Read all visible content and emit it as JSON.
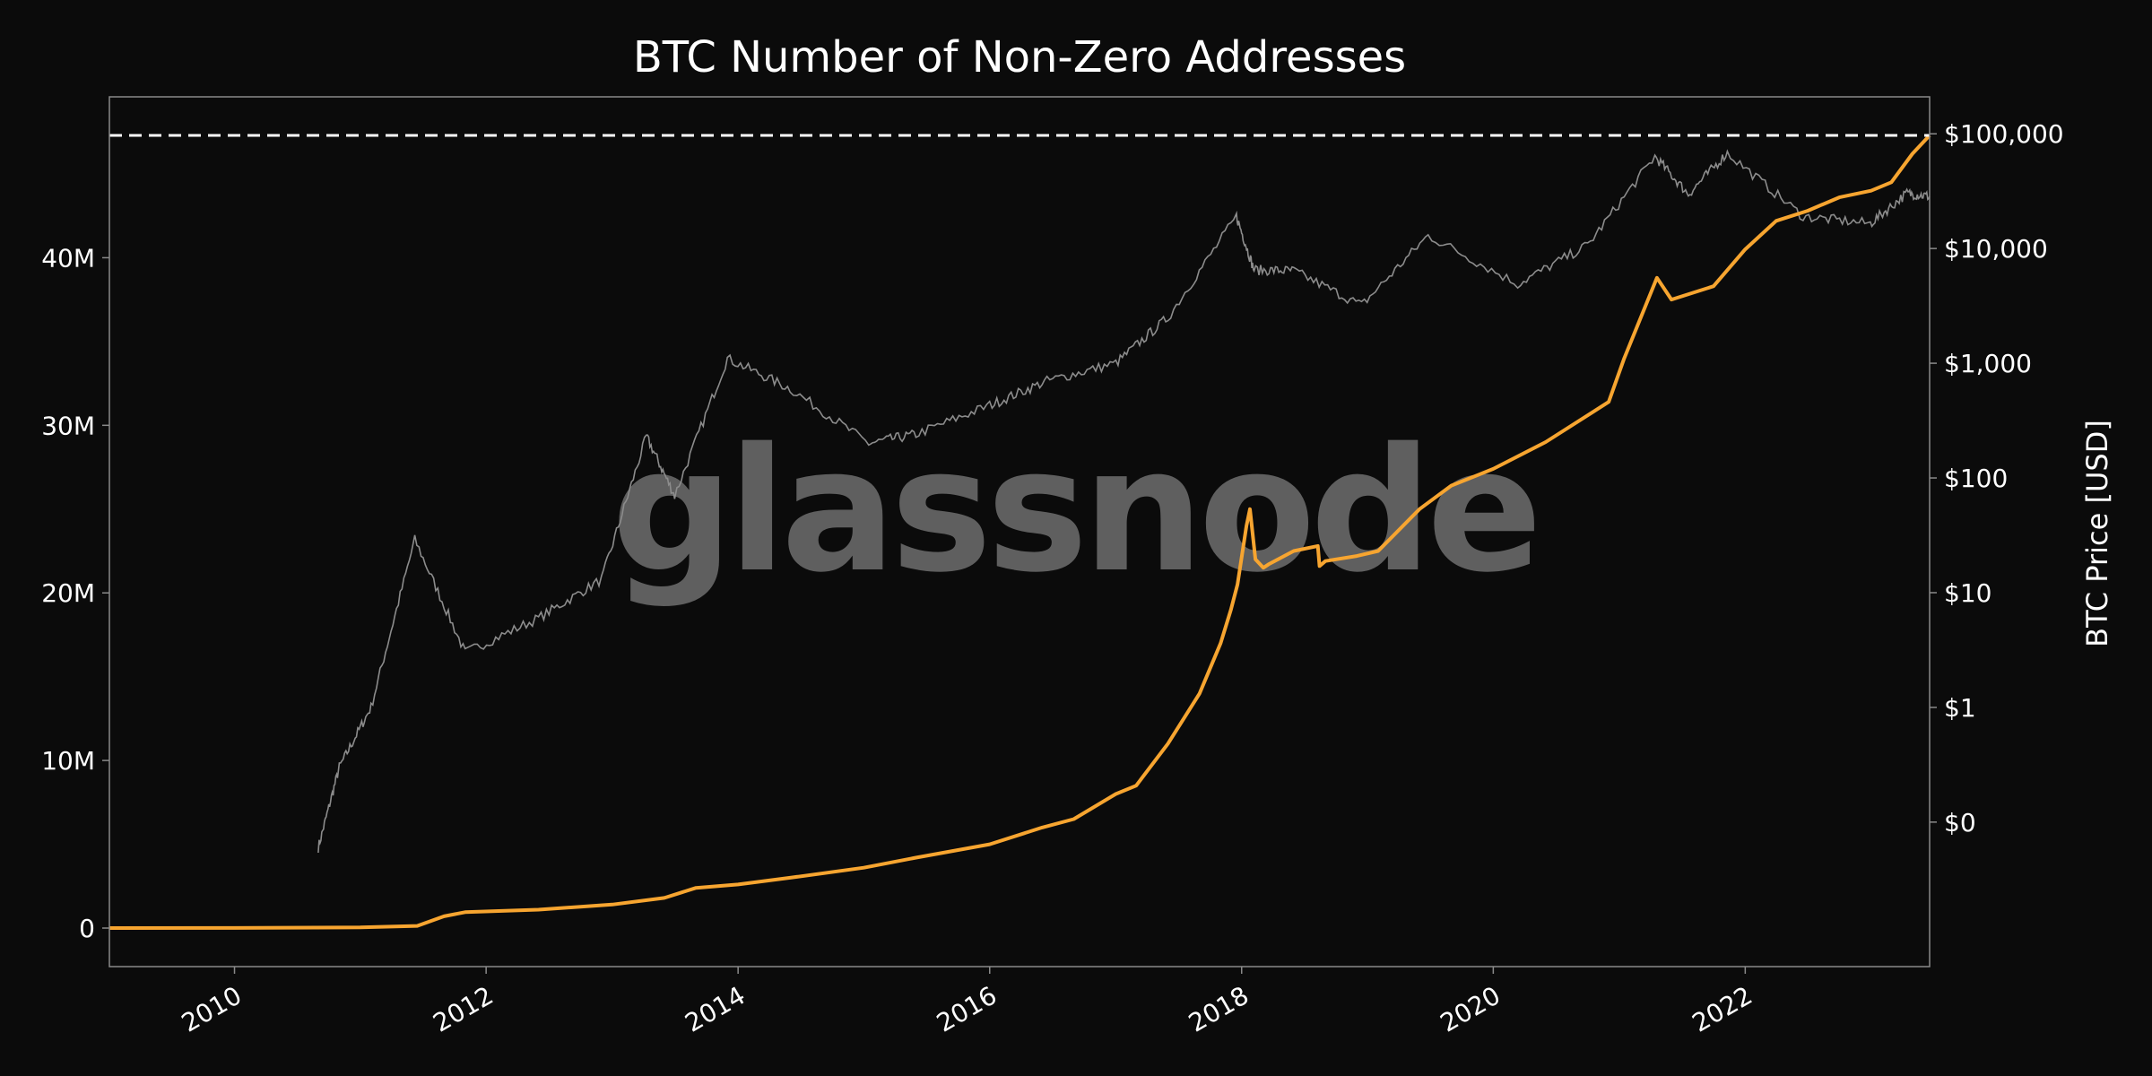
{
  "colors": {
    "background": "#0b0b0b",
    "frame": "#8a8a8a",
    "text": "#ffffff",
    "addresses": "#f7a530",
    "price": "#8c8c8c",
    "ath_line": "#ffffff",
    "watermark": "#5f5f5f"
  },
  "watermark": "glassnode",
  "chart_data": {
    "type": "line",
    "title": "BTC Number of Non-Zero Addresses",
    "xlabel": "",
    "ylabel": "",
    "y2label": "BTC Price [USD]",
    "x_ticks": [
      "2010",
      "2012",
      "2014",
      "2016",
      "2018",
      "2020",
      "2022"
    ],
    "y_ticks": [
      {
        "value": 0,
        "label": "0"
      },
      {
        "value": 10000000,
        "label": "10M"
      },
      {
        "value": 20000000,
        "label": "20M"
      },
      {
        "value": 30000000,
        "label": "30M"
      },
      {
        "value": 40000000,
        "label": "40M"
      }
    ],
    "y2_ticks": [
      {
        "value": 0.1,
        "label": "$0"
      },
      {
        "value": 1,
        "label": "$1"
      },
      {
        "value": 10,
        "label": "$10"
      },
      {
        "value": 100,
        "label": "$100"
      },
      {
        "value": 1000,
        "label": "$1,000"
      },
      {
        "value": 10000,
        "label": "$10,000"
      },
      {
        "value": 100000,
        "label": "$100,000"
      }
    ],
    "xlim": [
      "2009-01-03",
      "2023-06-20"
    ],
    "ylim": [
      -2300000,
      49600000
    ],
    "y2lim": [
      0.0055,
      210000
    ],
    "y2_scale": "log",
    "grid": false,
    "reference_line": {
      "axis": "y",
      "value": 47300000,
      "style": "dashed"
    },
    "series": [
      {
        "axis": "left",
        "points": [
          [
            "2009-01-03",
            0
          ],
          [
            "2010-01-01",
            5000
          ],
          [
            "2011-01-01",
            40000
          ],
          [
            "2011-06-15",
            130000
          ],
          [
            "2011-09-01",
            700000
          ],
          [
            "2011-11-01",
            950000
          ],
          [
            "2012-06-01",
            1100000
          ],
          [
            "2013-01-01",
            1400000
          ],
          [
            "2013-06-01",
            1800000
          ],
          [
            "2013-09-01",
            2400000
          ],
          [
            "2014-01-01",
            2600000
          ],
          [
            "2014-06-01",
            3000000
          ],
          [
            "2015-01-01",
            3600000
          ],
          [
            "2015-06-01",
            4200000
          ],
          [
            "2016-01-01",
            5000000
          ],
          [
            "2016-06-01",
            6000000
          ],
          [
            "2016-09-01",
            6500000
          ],
          [
            "2017-01-01",
            8000000
          ],
          [
            "2017-03-01",
            8500000
          ],
          [
            "2017-06-01",
            11000000
          ],
          [
            "2017-09-01",
            14000000
          ],
          [
            "2017-11-01",
            17000000
          ],
          [
            "2017-12-01",
            19000000
          ],
          [
            "2017-12-20",
            20500000
          ],
          [
            "2018-01-15",
            24000000
          ],
          [
            "2018-01-25",
            25000000
          ],
          [
            "2018-02-10",
            22000000
          ],
          [
            "2018-03-05",
            21500000
          ],
          [
            "2018-03-20",
            21700000
          ],
          [
            "2018-06-01",
            22500000
          ],
          [
            "2018-08-10",
            22800000
          ],
          [
            "2018-08-15",
            21600000
          ],
          [
            "2018-09-01",
            21900000
          ],
          [
            "2018-12-01",
            22200000
          ],
          [
            "2019-02-01",
            22500000
          ],
          [
            "2019-06-01",
            25000000
          ],
          [
            "2019-09-01",
            26400000
          ],
          [
            "2020-01-01",
            27400000
          ],
          [
            "2020-06-01",
            29000000
          ],
          [
            "2020-12-01",
            31400000
          ],
          [
            "2021-01-15",
            34000000
          ],
          [
            "2021-04-20",
            38800000
          ],
          [
            "2021-06-01",
            37500000
          ],
          [
            "2021-10-01",
            38300000
          ],
          [
            "2022-01-01",
            40500000
          ],
          [
            "2022-04-01",
            42200000
          ],
          [
            "2022-07-01",
            42800000
          ],
          [
            "2022-10-01",
            43600000
          ],
          [
            "2023-01-01",
            44000000
          ],
          [
            "2023-03-01",
            44500000
          ],
          [
            "2023-05-01",
            46200000
          ],
          [
            "2023-06-20",
            47300000
          ]
        ]
      },
      {
        "axis": "right",
        "points": [
          [
            "2010-09-01",
            0.06
          ],
          [
            "2010-11-01",
            0.3
          ],
          [
            "2011-02-01",
            1.0
          ],
          [
            "2011-06-08",
            29
          ],
          [
            "2011-11-01",
            3
          ],
          [
            "2012-06-01",
            6
          ],
          [
            "2012-12-01",
            13
          ],
          [
            "2013-04-10",
            230
          ],
          [
            "2013-07-01",
            70
          ],
          [
            "2013-12-01",
            1100
          ],
          [
            "2014-06-01",
            600
          ],
          [
            "2015-01-15",
            200
          ],
          [
            "2015-06-01",
            240
          ],
          [
            "2016-01-01",
            430
          ],
          [
            "2016-06-15",
            700
          ],
          [
            "2017-01-01",
            1000
          ],
          [
            "2017-06-01",
            2500
          ],
          [
            "2017-12-17",
            19000
          ],
          [
            "2018-02-06",
            6500
          ],
          [
            "2018-06-01",
            6400
          ],
          [
            "2018-12-15",
            3200
          ],
          [
            "2019-06-26",
            13000
          ],
          [
            "2020-03-12",
            4900
          ],
          [
            "2020-10-01",
            10700
          ],
          [
            "2021-04-14",
            63500
          ],
          [
            "2021-07-20",
            29800
          ],
          [
            "2021-11-10",
            68000
          ],
          [
            "2022-06-18",
            19000
          ],
          [
            "2022-12-30",
            16500
          ],
          [
            "2023-04-15",
            30300
          ],
          [
            "2023-06-20",
            28500
          ]
        ]
      }
    ]
  }
}
